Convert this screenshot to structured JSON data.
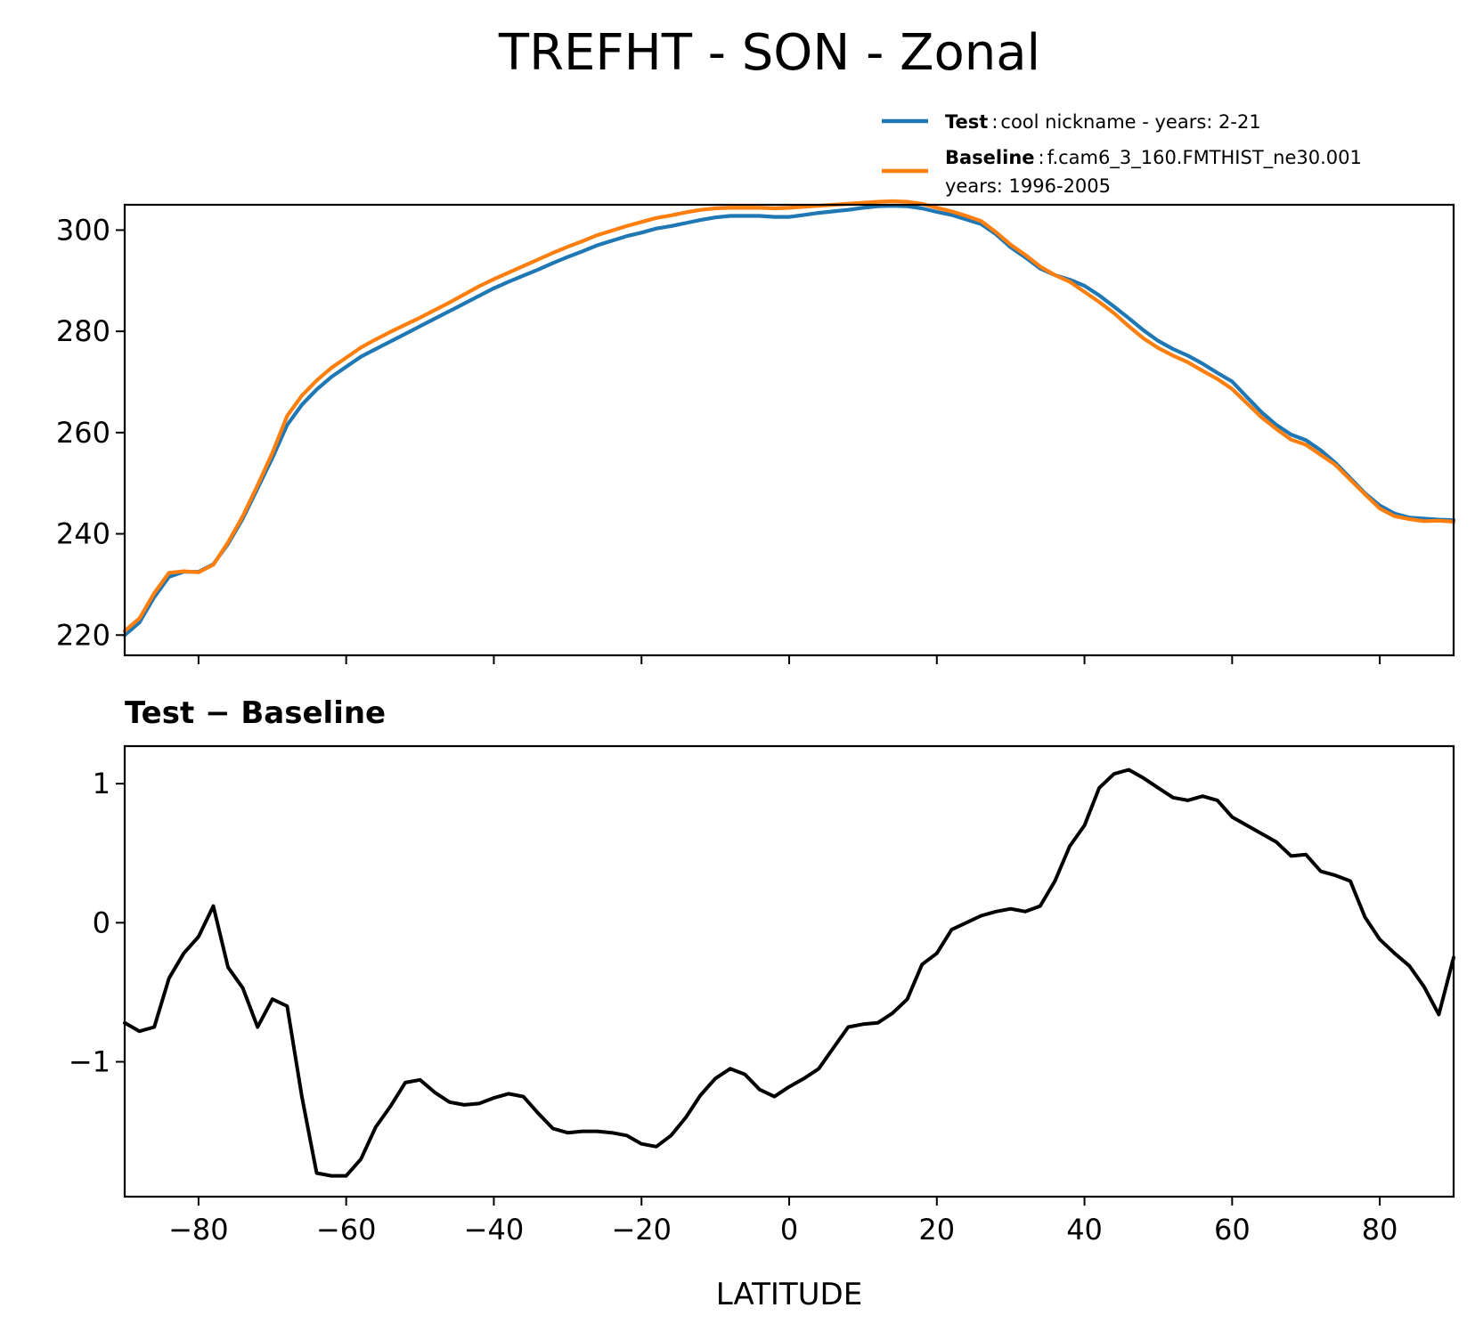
{
  "colors": {
    "test": "#1f77b4",
    "baseline": "#ff7f0e",
    "difference": "#000000"
  },
  "chart_data": [
    {
      "type": "line",
      "title": "TREFHT - SON - Zonal",
      "xlabel": "",
      "ylabel": "",
      "xlim": [
        -90,
        90
      ],
      "ylim": [
        216,
        305
      ],
      "yticks": [
        220,
        240,
        260,
        280,
        300
      ],
      "xticks": [
        -80,
        -60,
        -40,
        -20,
        0,
        20,
        40,
        60,
        80
      ],
      "show_xtick_labels": false,
      "legend": {
        "location": "above-right",
        "entries": [
          {
            "name": "Test",
            "sep": ":",
            "label": "cool nickname - years: 2-21",
            "label2": ""
          },
          {
            "name": "Baseline",
            "sep": ":",
            "label": "f.cam6_3_160.FMTHIST_ne30.001",
            "label2": "years: 1996-2005"
          }
        ]
      },
      "series": [
        {
          "name": "Test",
          "x": [
            -90,
            -88,
            -86,
            -84,
            -82,
            -80,
            -78,
            -76,
            -74,
            -72,
            -70,
            -68,
            -66,
            -64,
            -62,
            -60,
            -58,
            -56,
            -54,
            -52,
            -50,
            -48,
            -46,
            -44,
            -42,
            -40,
            -38,
            -36,
            -34,
            -32,
            -30,
            -28,
            -26,
            -24,
            -22,
            -20,
            -18,
            -16,
            -14,
            -12,
            -10,
            -8,
            -6,
            -4,
            -2,
            0,
            2,
            4,
            6,
            8,
            10,
            12,
            14,
            16,
            18,
            20,
            22,
            24,
            26,
            28,
            30,
            32,
            34,
            36,
            38,
            40,
            42,
            44,
            46,
            48,
            50,
            52,
            54,
            56,
            58,
            60,
            62,
            64,
            66,
            68,
            70,
            72,
            74,
            76,
            78,
            80,
            82,
            84,
            86,
            88,
            90
          ],
          "values": [
            220.0,
            222.5,
            227.5,
            231.5,
            232.5,
            232.5,
            234.0,
            238.0,
            243.0,
            249.0,
            255.0,
            261.5,
            265.5,
            268.5,
            271.0,
            273.0,
            275.0,
            276.5,
            278.0,
            279.5,
            281.0,
            282.5,
            284.0,
            285.5,
            287.0,
            288.5,
            289.8,
            291.0,
            292.2,
            293.5,
            294.7,
            295.8,
            297.0,
            297.9,
            298.8,
            299.5,
            300.3,
            300.8,
            301.4,
            302.0,
            302.5,
            302.8,
            302.8,
            302.8,
            302.6,
            302.6,
            303.0,
            303.4,
            303.7,
            304.0,
            304.4,
            304.7,
            304.8,
            304.7,
            304.3,
            303.6,
            303.0,
            302.1,
            301.2,
            299.2,
            296.6,
            294.6,
            292.4,
            291.1,
            290.2,
            289.0,
            287.1,
            284.9,
            282.6,
            280.2,
            278.1,
            276.5,
            275.2,
            273.6,
            271.8,
            270.1,
            267.0,
            264.0,
            261.5,
            259.6,
            258.5,
            256.5,
            254.0,
            251.0,
            248.0,
            245.6,
            244.0,
            243.2,
            243.0,
            242.8,
            242.7
          ]
        },
        {
          "name": "Baseline",
          "x": [
            -90,
            -88,
            -86,
            -84,
            -82,
            -80,
            -78,
            -76,
            -74,
            -72,
            -70,
            -68,
            -66,
            -64,
            -62,
            -60,
            -58,
            -56,
            -54,
            -52,
            -50,
            -48,
            -46,
            -44,
            -42,
            -40,
            -38,
            -36,
            -34,
            -32,
            -30,
            -28,
            -26,
            -24,
            -22,
            -20,
            -18,
            -16,
            -14,
            -12,
            -10,
            -8,
            -6,
            -4,
            -2,
            0,
            2,
            4,
            6,
            8,
            10,
            12,
            14,
            16,
            18,
            20,
            22,
            24,
            26,
            28,
            30,
            32,
            34,
            36,
            38,
            40,
            42,
            44,
            46,
            48,
            50,
            52,
            54,
            56,
            58,
            60,
            62,
            64,
            66,
            68,
            70,
            72,
            74,
            76,
            78,
            80,
            82,
            84,
            86,
            88,
            90
          ],
          "values": [
            220.8,
            223.3,
            228.3,
            232.3,
            232.6,
            232.4,
            233.9,
            238.3,
            243.5,
            249.6,
            256.0,
            263.3,
            267.3,
            270.3,
            272.8,
            274.8,
            276.8,
            278.4,
            279.9,
            281.3,
            282.7,
            284.2,
            285.7,
            287.3,
            288.9,
            290.3,
            291.6,
            292.9,
            294.2,
            295.5,
            296.7,
            297.8,
            299.0,
            299.9,
            300.8,
            301.6,
            302.4,
            302.9,
            303.5,
            304.0,
            304.3,
            304.4,
            304.4,
            304.4,
            304.3,
            304.4,
            304.6,
            304.8,
            305.0,
            305.2,
            305.4,
            305.6,
            305.7,
            305.6,
            305.2,
            304.4,
            303.7,
            302.8,
            301.8,
            299.6,
            297.1,
            295.1,
            292.8,
            291.1,
            289.8,
            287.8,
            285.8,
            283.6,
            281.0,
            278.6,
            276.7,
            275.2,
            273.9,
            272.2,
            270.6,
            268.6,
            265.8,
            263.0,
            260.7,
            258.6,
            257.6,
            255.6,
            253.6,
            250.7,
            247.8,
            245.0,
            243.5,
            242.9,
            242.5,
            242.6,
            242.4
          ]
        }
      ]
    },
    {
      "type": "line",
      "title": "Test − Baseline",
      "xlabel": "LATITUDE",
      "ylabel": "",
      "xlim": [
        -90,
        90
      ],
      "ylim": [
        -1.97,
        1.27
      ],
      "yticks": [
        1,
        0,
        -1
      ],
      "ytick_labels": [
        "1",
        "0",
        "−1"
      ],
      "xticks": [
        -80,
        -60,
        -40,
        -20,
        0,
        20,
        40,
        60,
        80
      ],
      "xtick_labels": [
        "−80",
        "−60",
        "−40",
        "−20",
        "0",
        "20",
        "40",
        "60",
        "80"
      ],
      "series": [
        {
          "name": "Test − Baseline",
          "x": [
            -90,
            -88,
            -86,
            -84,
            -82,
            -80,
            -78,
            -76,
            -74,
            -72,
            -70,
            -68,
            -66,
            -64,
            -62,
            -60,
            -58,
            -56,
            -54,
            -52,
            -50,
            -48,
            -46,
            -44,
            -42,
            -40,
            -38,
            -36,
            -34,
            -32,
            -30,
            -28,
            -26,
            -24,
            -22,
            -20,
            -18,
            -16,
            -14,
            -12,
            -10,
            -8,
            -6,
            -4,
            -2,
            0,
            2,
            4,
            6,
            8,
            10,
            12,
            14,
            16,
            18,
            20,
            22,
            24,
            26,
            28,
            30,
            32,
            34,
            36,
            38,
            40,
            42,
            44,
            46,
            48,
            50,
            52,
            54,
            56,
            58,
            60,
            62,
            64,
            66,
            68,
            70,
            72,
            74,
            76,
            78,
            80,
            82,
            84,
            86,
            88,
            90
          ],
          "values": [
            -0.72,
            -0.78,
            -0.75,
            -0.4,
            -0.22,
            -0.1,
            0.12,
            -0.32,
            -0.47,
            -0.75,
            -0.55,
            -0.6,
            -1.25,
            -1.8,
            -1.82,
            -1.82,
            -1.7,
            -1.47,
            -1.32,
            -1.15,
            -1.13,
            -1.22,
            -1.29,
            -1.31,
            -1.3,
            -1.26,
            -1.23,
            -1.25,
            -1.37,
            -1.48,
            -1.51,
            -1.5,
            -1.5,
            -1.51,
            -1.53,
            -1.59,
            -1.61,
            -1.53,
            -1.4,
            -1.24,
            -1.12,
            -1.05,
            -1.09,
            -1.2,
            -1.25,
            -1.18,
            -1.12,
            -1.05,
            -0.9,
            -0.75,
            -0.73,
            -0.72,
            -0.65,
            -0.55,
            -0.3,
            -0.22,
            -0.05,
            0.0,
            0.05,
            0.08,
            0.1,
            0.08,
            0.12,
            0.3,
            0.55,
            0.7,
            0.97,
            1.07,
            1.1,
            1.04,
            0.97,
            0.9,
            0.88,
            0.91,
            0.88,
            0.76,
            0.7,
            0.64,
            0.58,
            0.48,
            0.49,
            0.37,
            0.34,
            0.3,
            0.04,
            -0.12,
            -0.22,
            -0.31,
            -0.46,
            -0.66,
            -0.25
          ]
        }
      ]
    }
  ]
}
